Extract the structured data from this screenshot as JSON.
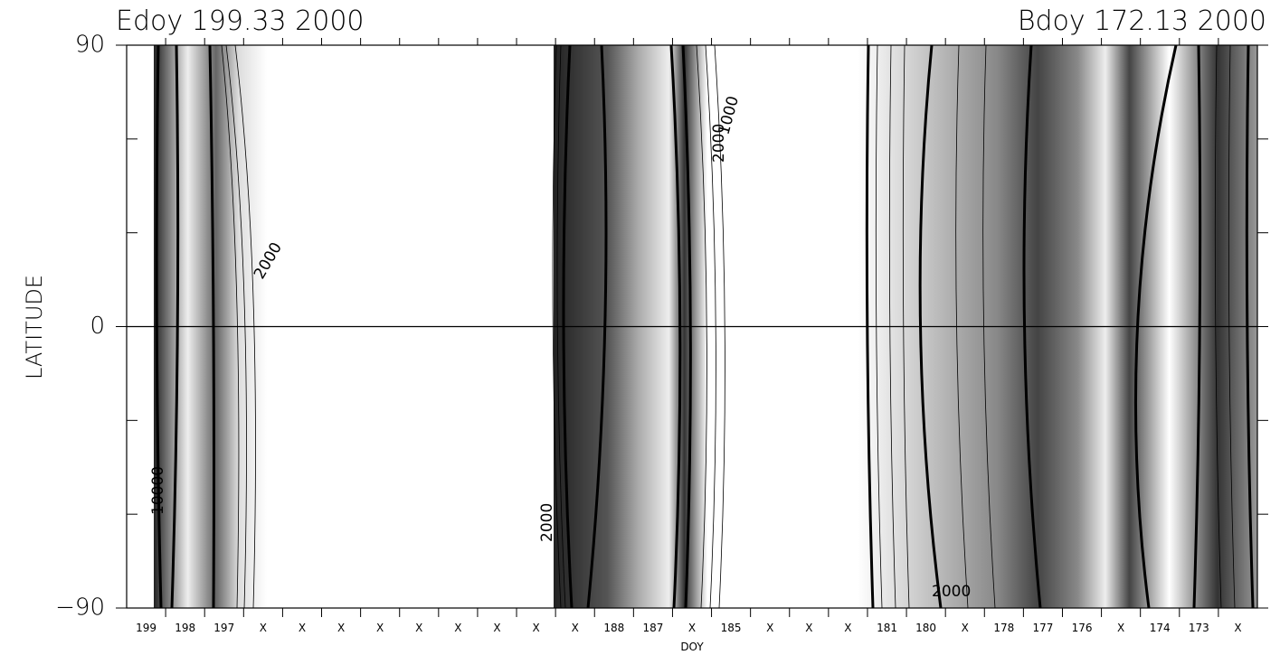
{
  "chart_data": {
    "type": "contour",
    "title_left": "Edoy 199.33 2000",
    "title_right": "Bdoy 172.13 2000",
    "x_label": "DOY",
    "y_label": "LATITUDE",
    "categories": [
      "199",
      "198",
      "197",
      "X",
      "X",
      "X",
      "X",
      "X",
      "X",
      "X",
      "X",
      "X",
      "188",
      "187",
      "X",
      "185",
      "X",
      "X",
      "X",
      "181",
      "180",
      "X",
      "178",
      "177",
      "176",
      "X",
      "174",
      "173",
      "X"
    ],
    "ylim": [
      -90,
      90
    ],
    "yticks": [
      {
        "value": -90,
        "label": "−90"
      },
      0,
      90
    ],
    "yminor_ticks": [
      -60,
      -30,
      30,
      60
    ],
    "zero_line": true,
    "annotations": [
      "10000",
      "2000",
      "1000",
      "2000",
      "2000",
      "2000"
    ]
  }
}
